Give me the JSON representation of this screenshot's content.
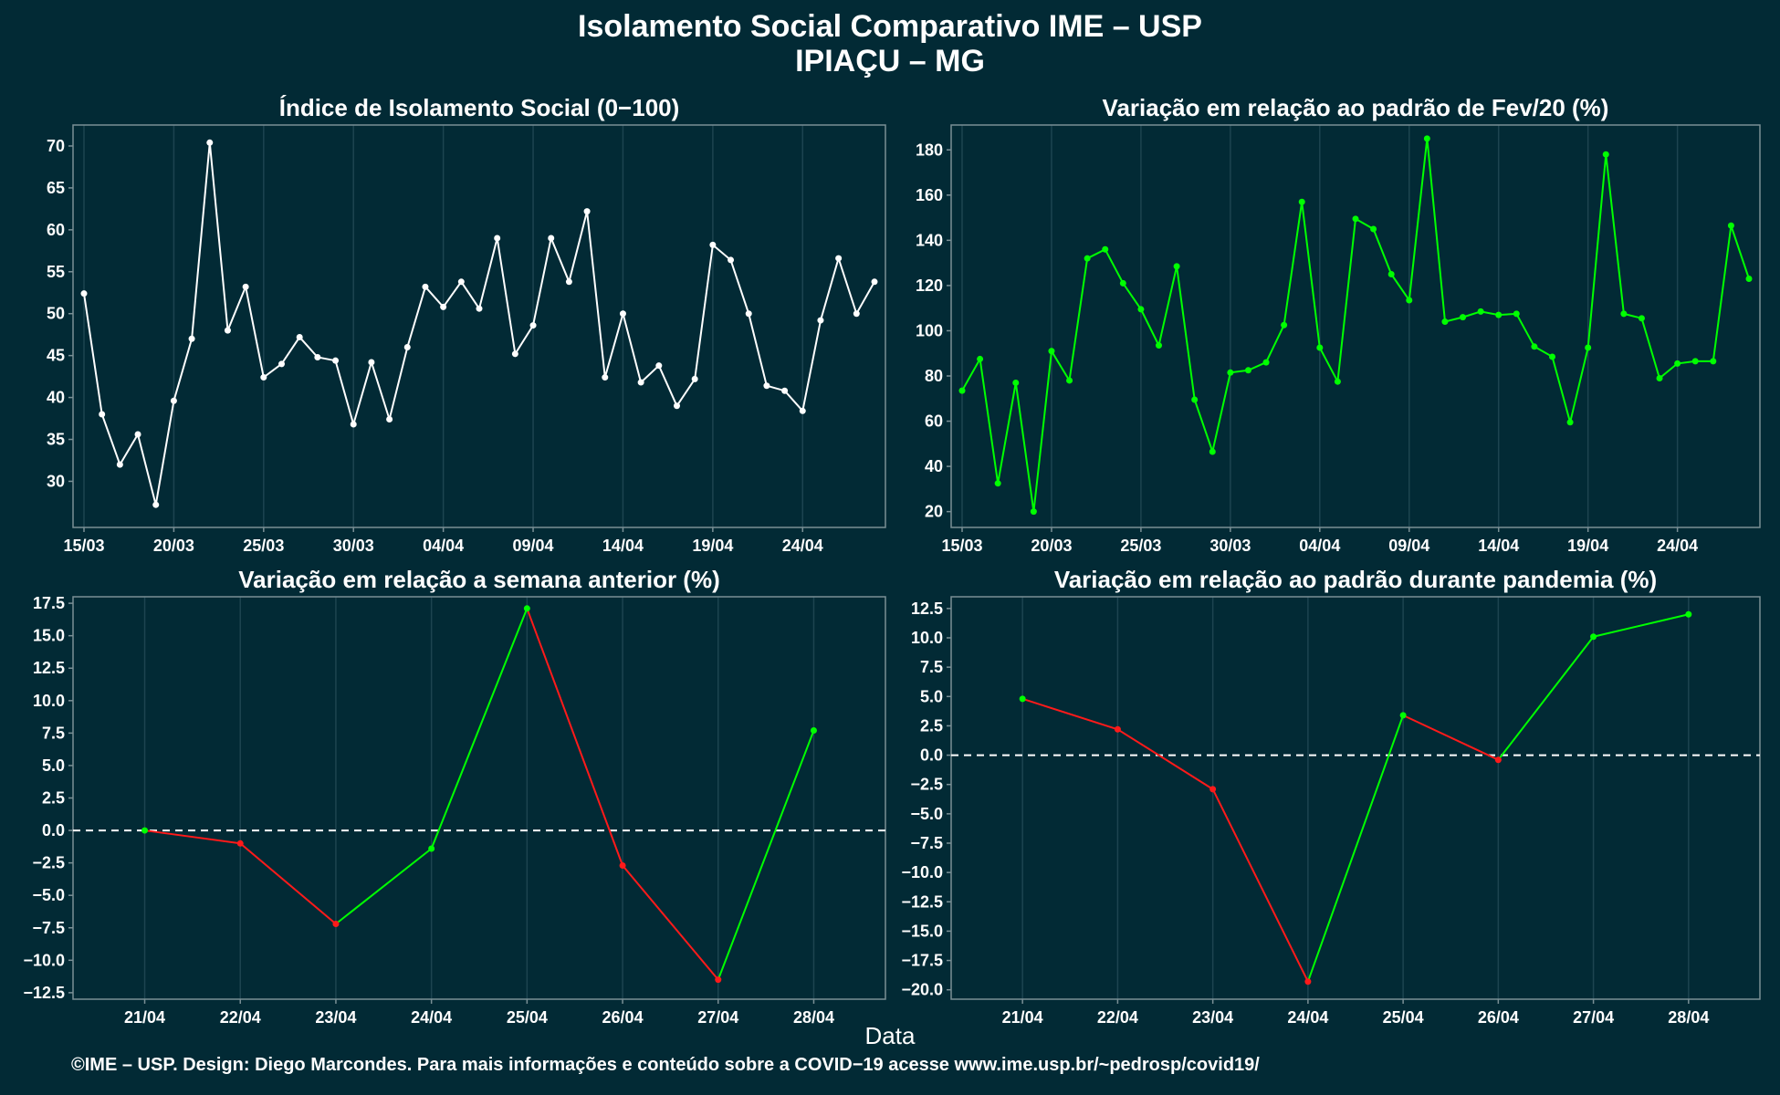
{
  "title_line1": "Isolamento Social Comparativo IME – USP",
  "title_line2": "IPIAÇU – MG",
  "xlabel": "Data",
  "footer": "©IME – USP. Design: Diego Marcondes. Para mais informações e conteúdo sobre a COVID−19 acesse www.ime.usp.br/~pedrosp/covid19/",
  "colors": {
    "background": "#022a35",
    "panel_border": "#7a8f95",
    "grid": "#1d4450",
    "index_line": "#ffffff",
    "positive": "#00ff00",
    "negative": "#ff1a1a"
  },
  "chart_data": [
    {
      "type": "line",
      "title": "Índice de Isolamento Social (0−100)",
      "x": [
        "15/03",
        "16/03",
        "17/03",
        "18/03",
        "19/03",
        "20/03",
        "21/03",
        "22/03",
        "23/03",
        "24/03",
        "25/03",
        "26/03",
        "27/03",
        "28/03",
        "29/03",
        "30/03",
        "31/03",
        "01/04",
        "02/04",
        "03/04",
        "04/04",
        "05/04",
        "06/04",
        "07/04",
        "08/04",
        "09/04",
        "10/04",
        "11/04",
        "12/04",
        "13/04",
        "14/04",
        "15/04",
        "16/04",
        "17/04",
        "18/04",
        "19/04",
        "20/04",
        "21/04",
        "22/04",
        "23/04",
        "24/04",
        "25/04",
        "26/04",
        "27/04",
        "28/04"
      ],
      "xticks": [
        "15/03",
        "20/03",
        "25/03",
        "30/03",
        "04/04",
        "09/04",
        "14/04",
        "19/04",
        "24/04"
      ],
      "series": [
        {
          "values": [
            52.4,
            38.0,
            32.0,
            35.6,
            27.2,
            39.6,
            47.0,
            70.4,
            48.0,
            53.2,
            42.4,
            44.0,
            47.2,
            44.8,
            44.4,
            36.8,
            44.2,
            37.4,
            46.0,
            53.2,
            50.8,
            53.8,
            50.6,
            59.0,
            45.2,
            48.6,
            59.0,
            53.8,
            62.2,
            42.4,
            50.0,
            41.8,
            43.8,
            39.0,
            42.2,
            58.2,
            56.4,
            50.0,
            41.4,
            40.8,
            38.4,
            49.2,
            56.6,
            50.0,
            53.8
          ]
        }
      ],
      "ylim": [
        24.5,
        72.5
      ],
      "yticks": [
        30,
        35,
        40,
        45,
        50,
        55,
        60,
        65,
        70
      ]
    },
    {
      "type": "line",
      "title": "Variação em relação ao padrão de Fev/20 (%)",
      "x": [
        "15/03",
        "16/03",
        "17/03",
        "18/03",
        "19/03",
        "20/03",
        "21/03",
        "22/03",
        "23/03",
        "24/03",
        "25/03",
        "26/03",
        "27/03",
        "28/03",
        "29/03",
        "30/03",
        "31/03",
        "01/04",
        "02/04",
        "03/04",
        "04/04",
        "05/04",
        "06/04",
        "07/04",
        "08/04",
        "09/04",
        "10/04",
        "11/04",
        "12/04",
        "13/04",
        "14/04",
        "15/04",
        "16/04",
        "17/04",
        "18/04",
        "19/04",
        "20/04",
        "21/04",
        "22/04",
        "23/04",
        "24/04",
        "25/04",
        "26/04",
        "27/04",
        "28/04"
      ],
      "xticks": [
        "15/03",
        "20/03",
        "25/03",
        "30/03",
        "04/04",
        "09/04",
        "14/04",
        "19/04",
        "24/04"
      ],
      "series": [
        {
          "values": [
            73.5,
            87.5,
            32.5,
            77.0,
            20.0,
            91.0,
            78.0,
            132.0,
            136.0,
            121.0,
            109.5,
            93.5,
            128.5,
            69.5,
            46.5,
            81.5,
            82.5,
            86.0,
            102.5,
            157.0,
            92.5,
            77.5,
            149.5,
            145.0,
            125.0,
            113.5,
            185.0,
            104.0,
            106.0,
            108.5,
            107.0,
            107.5,
            93.0,
            88.5,
            59.5,
            92.5,
            178.0,
            107.5,
            105.5,
            79.0,
            85.5,
            86.5,
            86.5,
            146.5,
            123.0
          ]
        }
      ],
      "ylim": [
        13,
        191
      ],
      "yticks": [
        20,
        40,
        60,
        80,
        100,
        120,
        140,
        160,
        180
      ]
    },
    {
      "type": "line",
      "title": "Variação em relação a semana anterior (%)",
      "x": [
        "21/04",
        "22/04",
        "23/04",
        "24/04",
        "25/04",
        "26/04",
        "27/04",
        "28/04"
      ],
      "series": [
        {
          "values": [
            0.0,
            -1.0,
            -7.2,
            -1.4,
            17.1,
            -2.7,
            -11.5,
            7.7
          ]
        }
      ],
      "ylim": [
        -13.0,
        18.0
      ],
      "yticks": [
        -12.5,
        -10.0,
        -7.5,
        -5.0,
        -2.5,
        0.0,
        2.5,
        5.0,
        7.5,
        10.0,
        12.5,
        15.0,
        17.5
      ],
      "reference_line": 0
    },
    {
      "type": "line",
      "title": "Variação em relação ao padrão durante pandemia (%)",
      "x": [
        "21/04",
        "22/04",
        "23/04",
        "24/04",
        "25/04",
        "26/04",
        "27/04",
        "28/04"
      ],
      "series": [
        {
          "values": [
            4.8,
            2.2,
            -2.9,
            -19.3,
            3.4,
            -0.4,
            10.1,
            12.0
          ]
        }
      ],
      "ylim": [
        -20.8,
        13.5
      ],
      "yticks": [
        -20.0,
        -17.5,
        -15.0,
        -12.5,
        -10.0,
        -7.5,
        -5.0,
        -2.5,
        0.0,
        2.5,
        5.0,
        7.5,
        10.0,
        12.5
      ],
      "reference_line": 0
    }
  ]
}
